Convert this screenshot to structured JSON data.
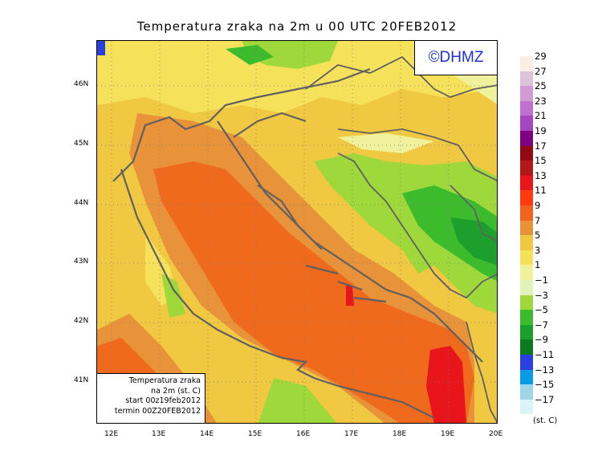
{
  "title": "Temperatura zraka na 2m u 00 UTC 20FEB2012",
  "logo": "©DHMZ",
  "infobox": {
    "line1": "Temperatura zraka",
    "line2": "na 2m (st. C)",
    "line3": "start 00z19feb2012",
    "line4": "termin 00Z20FEB2012"
  },
  "lat_labels": [
    "46N",
    "45N",
    "44N",
    "43N",
    "42N",
    "41N"
  ],
  "lon_labels": [
    "12E",
    "13E",
    "14E",
    "15E",
    "16E",
    "17E",
    "18E",
    "19E",
    "20E"
  ],
  "legend": {
    "unit": "(st. C)",
    "labels": [
      "29",
      "27",
      "25",
      "23",
      "21",
      "19",
      "17",
      "15",
      "13",
      "11",
      "9",
      "7",
      "5",
      "3",
      "1",
      "−1",
      "−3",
      "−5",
      "−7",
      "−9",
      "−11",
      "−13",
      "−15",
      "−17"
    ],
    "colors": [
      "#fbeee4",
      "#dcc3d9",
      "#d39bd3",
      "#c070cf",
      "#a448c2",
      "#7d007f",
      "#8f0a14",
      "#b31818",
      "#e8161a",
      "#ff3a0f",
      "#f2621e",
      "#e8923a",
      "#f0c842",
      "#f6e25a",
      "#eff29a",
      "#e3f2b8",
      "#9fd83a",
      "#3cbc2c",
      "#1c9f2d",
      "#0a7a1c",
      "#2a3fe0",
      "#0a9be6",
      "#9ed6e6",
      "#daf4f5"
    ]
  },
  "colors": {
    "sea_warm": "#f06a1e",
    "sea_hot": "#e8161a",
    "coast_warm": "#e8923a",
    "land_mild": "#f0c842",
    "land_cool": "#f6e25a",
    "land_pale": "#eff29a",
    "land_cold": "#9fd83a",
    "land_colder": "#3cbc2c",
    "land_coldest": "#1c9f2d",
    "coastline": "#606060",
    "logo_text": "#1f2fd0"
  }
}
